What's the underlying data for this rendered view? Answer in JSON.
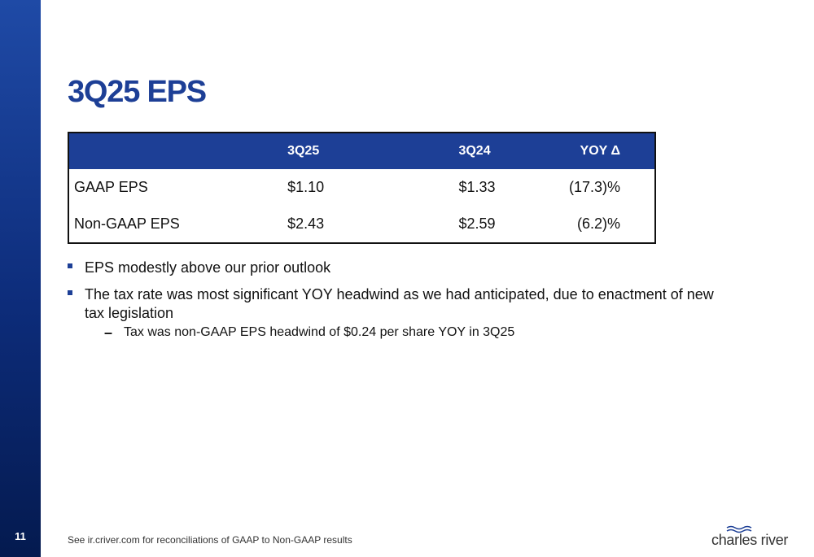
{
  "slide": {
    "title": "3Q25 EPS",
    "page_number": "11",
    "footnote": "See ir.criver.com for reconciliations of GAAP to Non-GAAP results"
  },
  "table": {
    "headers": [
      "",
      "3Q25",
      "3Q24",
      "YOY Δ"
    ],
    "rows": [
      {
        "label": "GAAP EPS",
        "q3_25": "$1.10",
        "q3_24": "$1.33",
        "yoy": "(17.3)%"
      },
      {
        "label": "Non-GAAP EPS",
        "q3_25": "$2.43",
        "q3_24": "$2.59",
        "yoy": "(6.2)%"
      }
    ]
  },
  "bullets": [
    {
      "text": "EPS modestly above our prior outlook"
    },
    {
      "text": "The tax rate was most significant YOY headwind as we had anticipated, due to enactment of new tax legislation",
      "sub": "Tax was non-GAAP EPS headwind of $0.24 per share YOY in 3Q25"
    }
  ],
  "logo": {
    "text": "charles river",
    "icon": "waves-icon"
  },
  "colors": {
    "brand_blue": "#1d3f96",
    "sidebar_dark": "#041a4f"
  }
}
